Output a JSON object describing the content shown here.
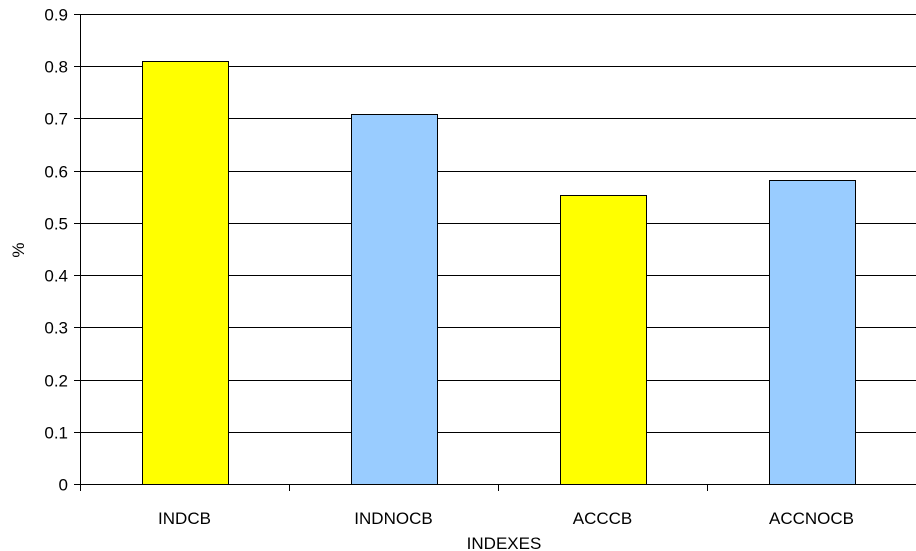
{
  "chart_data": {
    "type": "bar",
    "categories": [
      "INDCB",
      "INDNOCB",
      "ACCCB",
      "ACCNOCB"
    ],
    "values": [
      0.81,
      0.708,
      0.554,
      0.583
    ],
    "bar_colors": [
      "#ffff00",
      "#99ccff",
      "#ffff00",
      "#99ccff"
    ],
    "xlabel": "INDEXES",
    "ylabel": "%",
    "ylim": [
      0,
      0.9
    ],
    "yticks": [
      0,
      0.1,
      0.2,
      0.3,
      0.4,
      0.5,
      0.6,
      0.7,
      0.8,
      0.9
    ],
    "ytick_labels": [
      "0",
      "0.1",
      "0.2",
      "0.3",
      "0.4",
      "0.5",
      "0.6",
      "0.7",
      "0.8",
      "0.9"
    ],
    "grid": true,
    "legend": "none"
  }
}
